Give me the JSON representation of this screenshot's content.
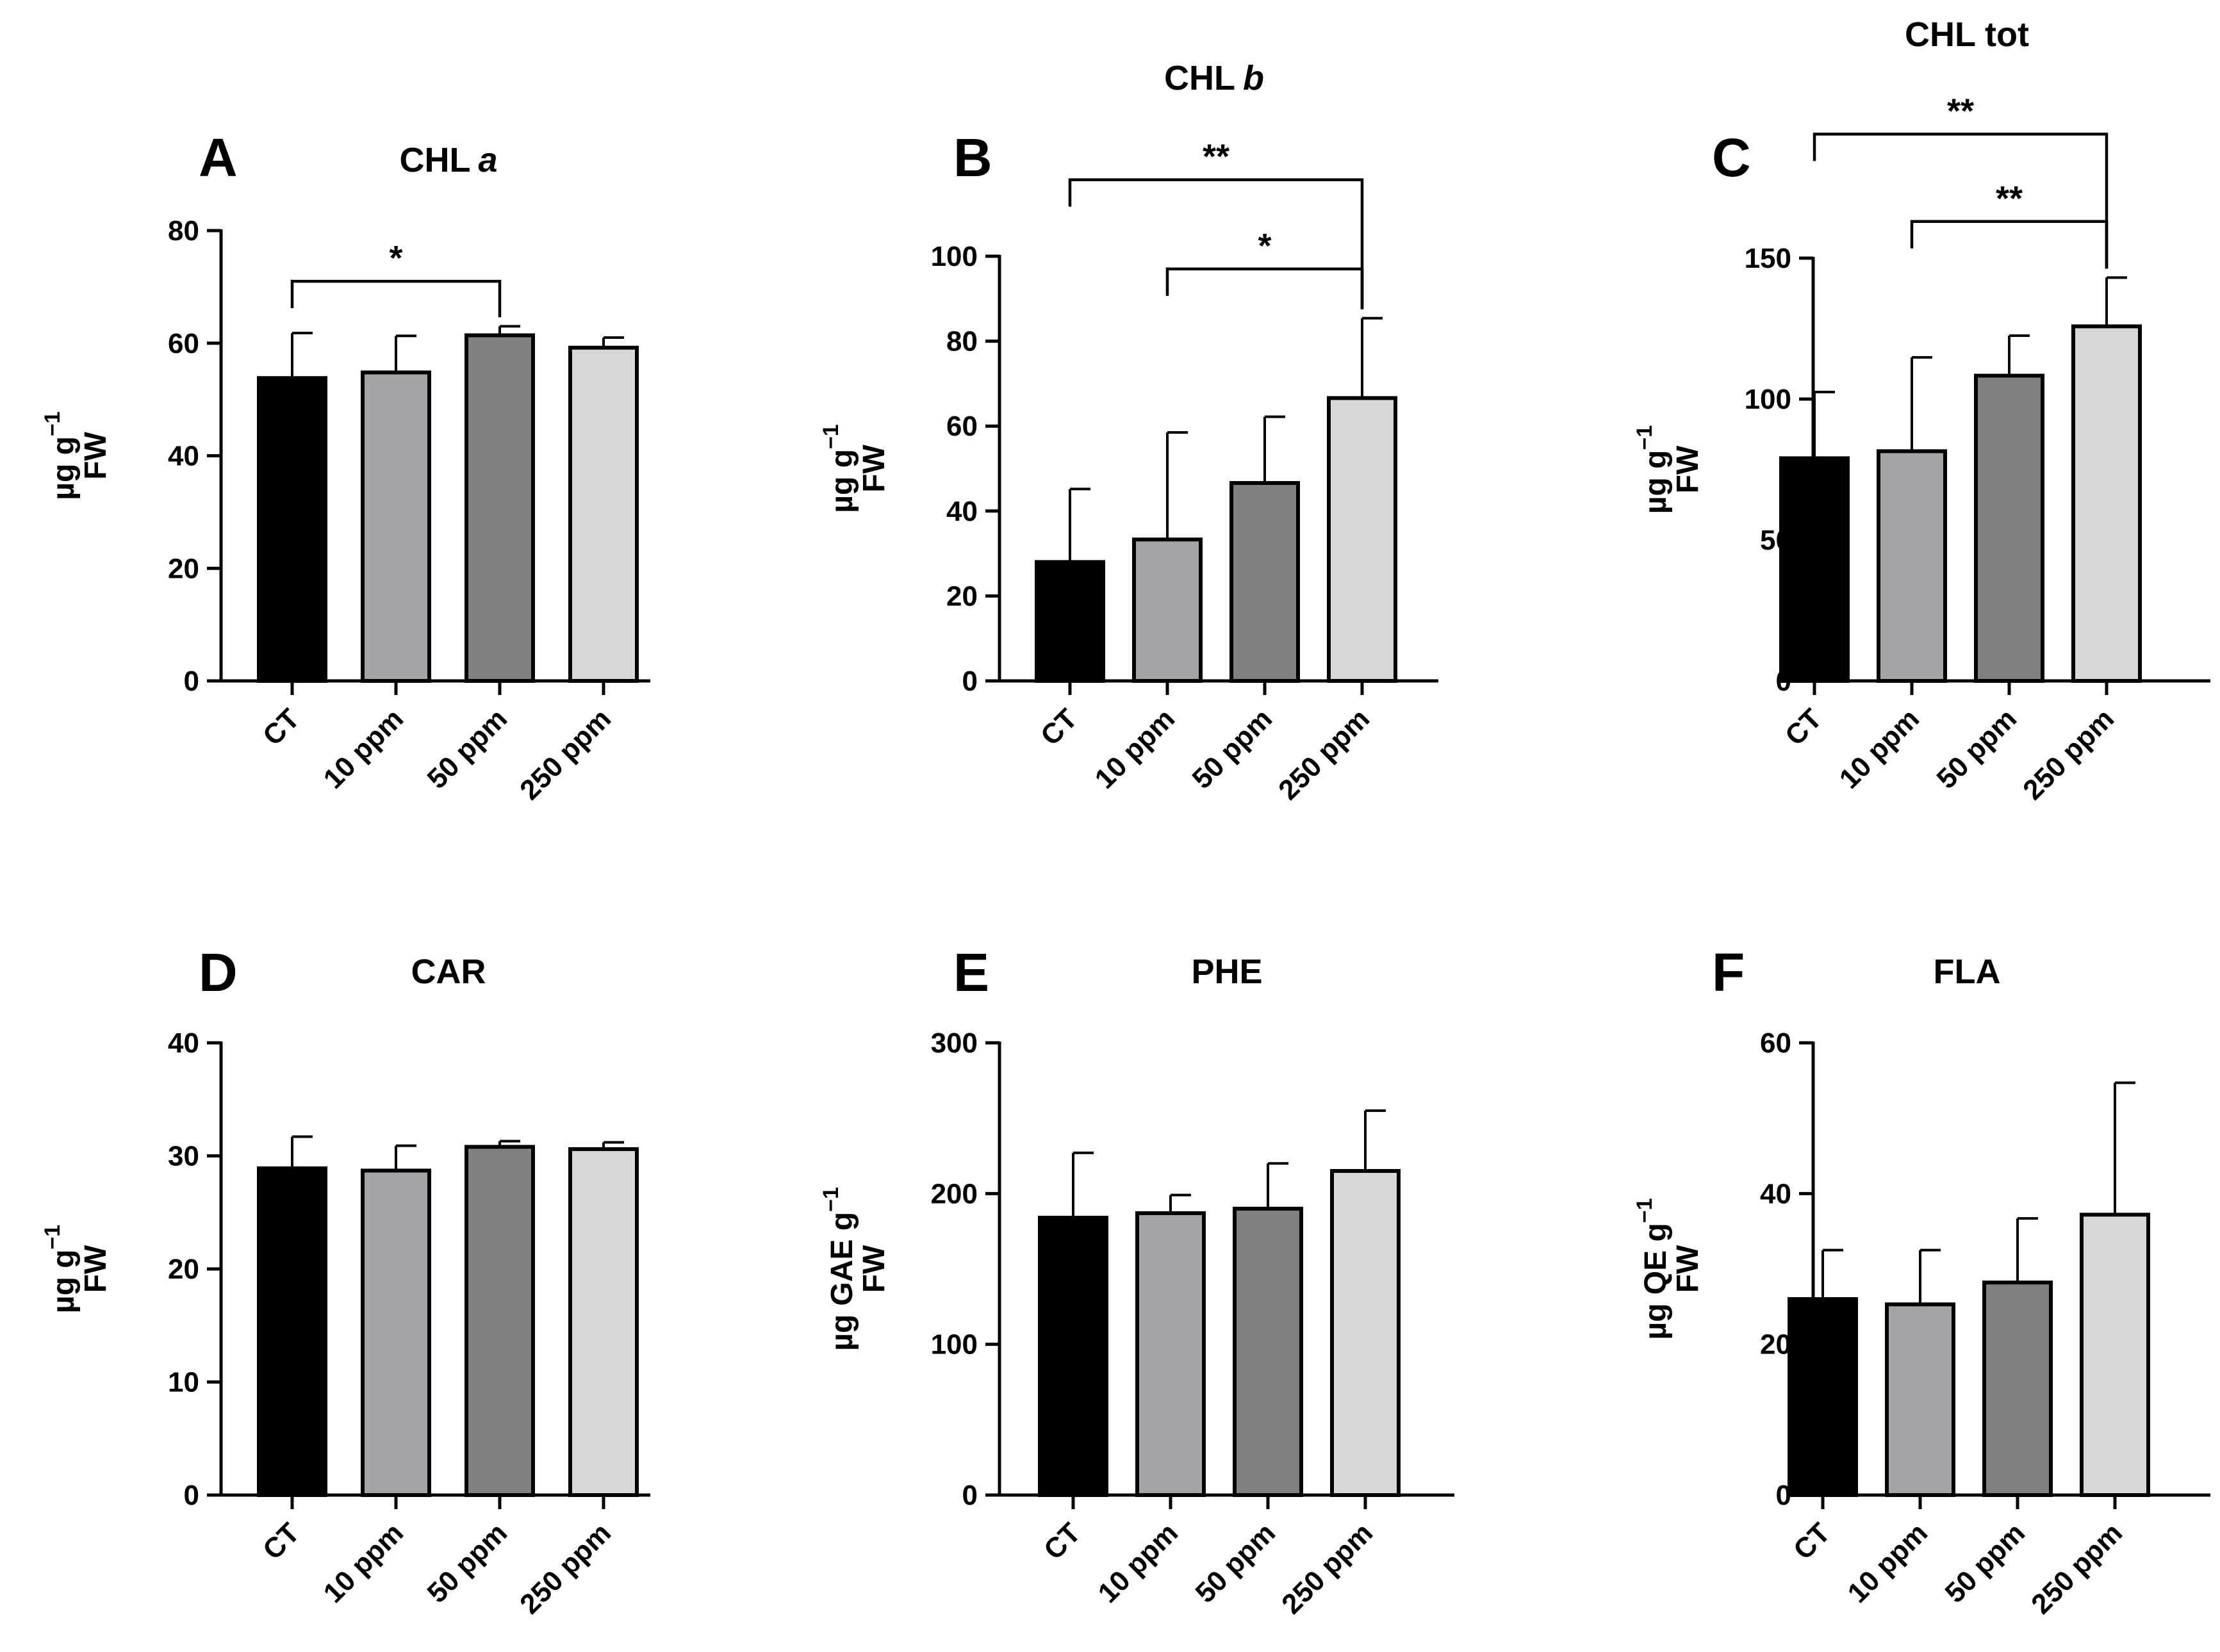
{
  "figure": {
    "bar_colors": [
      "#000000",
      "#a3a3a8",
      "#808080",
      "#d7d7d7"
    ]
  },
  "chart_data": [
    {
      "type": "bar",
      "letter": "A",
      "title": "CHL",
      "title_italic": "a",
      "ylabel_line1": "µg g",
      "ylabel_sup": "−1",
      "ylabel_line2": "FW",
      "categories": [
        "CT",
        "10 ppm",
        "50 ppm",
        "250 ppm"
      ],
      "values": [
        53.8,
        54.8,
        61.4,
        59.2
      ],
      "errors": [
        8.0,
        6.5,
        1.6,
        1.8
      ],
      "ylim": [
        0,
        80
      ],
      "yticks": [
        0,
        20,
        40,
        60,
        80
      ],
      "brackets": [
        {
          "from": 0,
          "to": 2,
          "label": "*",
          "level": 71
        }
      ]
    },
    {
      "type": "bar",
      "letter": "B",
      "title": "CHL",
      "title_italic": "b",
      "ylabel_line1": "µg g",
      "ylabel_sup": "−1",
      "ylabel_line2": "FW",
      "categories": [
        "CT",
        "10 ppm",
        "50 ppm",
        "250 ppm"
      ],
      "values": [
        28.0,
        33.3,
        46.6,
        66.6
      ],
      "errors": [
        17.2,
        25.2,
        15.6,
        18.8
      ],
      "ylim": [
        0,
        100
      ],
      "yticks": [
        0,
        20,
        40,
        60,
        80,
        100
      ],
      "brackets": [
        {
          "from": 1,
          "to": 3,
          "label": "*",
          "level": 97
        },
        {
          "from": 0,
          "to": 3,
          "label": "**",
          "level": 118
        }
      ]
    },
    {
      "type": "bar",
      "letter": "C",
      "title": "CHL tot",
      "title_italic": "",
      "ylabel_line1": "µg g",
      "ylabel_sup": "−1",
      "ylabel_line2": "FW",
      "categories": [
        "CT",
        "10 ppm",
        "50 ppm",
        "250 ppm"
      ],
      "values": [
        79.0,
        81.5,
        108.3,
        125.8
      ],
      "errors": [
        23.5,
        33.3,
        14.2,
        17.3
      ],
      "ylim": [
        0,
        150
      ],
      "yticks": [
        0,
        50,
        100,
        150
      ],
      "brackets": [
        {
          "from": 1,
          "to": 3,
          "label": "**",
          "level": 163
        },
        {
          "from": 0,
          "to": 3,
          "label": "**",
          "level": 194
        }
      ]
    },
    {
      "type": "bar",
      "letter": "D",
      "title": "CAR",
      "title_italic": "",
      "ylabel_line1": "µg g",
      "ylabel_sup": "−1",
      "ylabel_line2": "FW",
      "categories": [
        "CT",
        "10 ppm",
        "50 ppm",
        "250 ppm"
      ],
      "values": [
        28.9,
        28.7,
        30.8,
        30.6
      ],
      "errors": [
        2.8,
        2.2,
        0.5,
        0.6
      ],
      "ylim": [
        0,
        40
      ],
      "yticks": [
        0,
        10,
        20,
        30,
        40
      ],
      "brackets": []
    },
    {
      "type": "bar",
      "letter": "E",
      "title": "PHE",
      "title_italic": "",
      "ylabel_line1": "µg GAE g",
      "ylabel_sup": "−1",
      "ylabel_line2": "FW",
      "categories": [
        "CT",
        "10 ppm",
        "50 ppm",
        "250 ppm"
      ],
      "values": [
        184,
        187,
        190,
        215
      ],
      "errors": [
        43,
        12,
        30,
        40
      ],
      "ylim": [
        0,
        300
      ],
      "yticks": [
        0,
        100,
        200,
        300
      ],
      "brackets": []
    },
    {
      "type": "bar",
      "letter": "F",
      "title": "FLA",
      "title_italic": "",
      "ylabel_line1": "µg QE g",
      "ylabel_sup": "−1",
      "ylabel_line2": "FW",
      "categories": [
        "CT",
        "10 ppm",
        "50 ppm",
        "250 ppm"
      ],
      "values": [
        26.0,
        25.3,
        28.2,
        37.2
      ],
      "errors": [
        6.5,
        7.2,
        8.5,
        17.5
      ],
      "ylim": [
        0,
        60
      ],
      "yticks": [
        0,
        20,
        40,
        60
      ],
      "brackets": []
    }
  ]
}
